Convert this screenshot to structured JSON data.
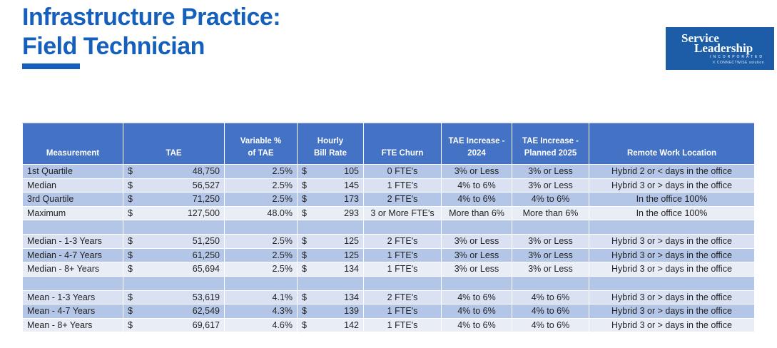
{
  "title": {
    "line1": "Infrastructure Practice:",
    "line2": "Field Technician"
  },
  "logo": {
    "line1": "Service",
    "line2": "Leadership",
    "line3": "INCORPORATED",
    "tagline": "CONNECTWISE solution"
  },
  "colors": {
    "title_blue": "#1560BD",
    "logo_blue": "#1D5CA6",
    "header_blue": "#4472C4",
    "row_dark": "#B4C6E7",
    "row_light": "#D9E1F2",
    "row_lighter": "#E9EDF6",
    "header_text": "#FFFFFF",
    "body_text": "#222222"
  },
  "table": {
    "currency_symbol": "$",
    "columns": [
      {
        "label": "Measurement"
      },
      {
        "label": "TAE"
      },
      {
        "label": "Variable %\nof TAE"
      },
      {
        "label": "Hourly\nBill Rate"
      },
      {
        "label": "FTE Churn"
      },
      {
        "label": "TAE Increase -\n2024"
      },
      {
        "label": "TAE Increase -\nPlanned 2025"
      },
      {
        "label": "Remote Work Location"
      }
    ],
    "rows": [
      {
        "band": "dark",
        "measurement": "1st Quartile",
        "tae": "48,750",
        "variable_pct": "2.5%",
        "bill_rate": "105",
        "fte_churn": "0 FTE's",
        "tae_increase_2024": "3% or Less",
        "tae_increase_2025": "3% or Less",
        "remote": "Hybrid 2 or < days in the office"
      },
      {
        "band": "light",
        "measurement": "Median",
        "tae": "56,527",
        "variable_pct": "2.5%",
        "bill_rate": "145",
        "fte_churn": "1 FTE's",
        "tae_increase_2024": "4% to 6%",
        "tae_increase_2025": "3% or Less",
        "remote": "Hybrid 3 or > days in the office"
      },
      {
        "band": "dark",
        "measurement": "3rd Quartile",
        "tae": "71,250",
        "variable_pct": "2.5%",
        "bill_rate": "173",
        "fte_churn": "2 FTE's",
        "tae_increase_2024": "4% to 6%",
        "tae_increase_2025": "4% to 6%",
        "remote": "In the office 100%"
      },
      {
        "band": "lighter",
        "measurement": "Maximum",
        "tae": "127,500",
        "variable_pct": "48.0%",
        "bill_rate": "293",
        "fte_churn": "3 or More FTE's",
        "tae_increase_2024": "More than 6%",
        "tae_increase_2025": "More than 6%",
        "remote": "In the office 100%"
      },
      {
        "spacer": true,
        "band": "dark"
      },
      {
        "band": "light",
        "measurement": "Median - 1-3 Years",
        "tae": "51,250",
        "variable_pct": "2.5%",
        "bill_rate": "125",
        "fte_churn": "2 FTE's",
        "tae_increase_2024": "3% or Less",
        "tae_increase_2025": "3% or Less",
        "remote": "Hybrid 3 or > days in the office"
      },
      {
        "band": "dark",
        "measurement": "Median - 4-7 Years",
        "tae": "61,250",
        "variable_pct": "2.5%",
        "bill_rate": "125",
        "fte_churn": "1 FTE's",
        "tae_increase_2024": "3% or Less",
        "tae_increase_2025": "3% or Less",
        "remote": "Hybrid 3 or > days in the office"
      },
      {
        "band": "lighter",
        "measurement": "Median - 8+ Years",
        "tae": "65,694",
        "variable_pct": "2.5%",
        "bill_rate": "134",
        "fte_churn": "1 FTE's",
        "tae_increase_2024": "3% or Less",
        "tae_increase_2025": "3% or Less",
        "remote": "Hybrid 3 or > days in the office"
      },
      {
        "spacer": true,
        "band": "dark"
      },
      {
        "band": "light",
        "measurement": "Mean - 1-3 Years",
        "tae": "53,619",
        "variable_pct": "4.1%",
        "bill_rate": "134",
        "fte_churn": "2 FTE's",
        "tae_increase_2024": "4% to 6%",
        "tae_increase_2025": "4% to 6%",
        "remote": "Hybrid 3 or > days in the office"
      },
      {
        "band": "dark",
        "measurement": "Mean - 4-7 Years",
        "tae": "62,549",
        "variable_pct": "4.3%",
        "bill_rate": "139",
        "fte_churn": "1 FTE's",
        "tae_increase_2024": "4% to 6%",
        "tae_increase_2025": "4% to 6%",
        "remote": "Hybrid 3 or > days in the office"
      },
      {
        "band": "lighter",
        "measurement": "Mean - 8+ Years",
        "tae": "69,617",
        "variable_pct": "4.6%",
        "bill_rate": "142",
        "fte_churn": "1 FTE's",
        "tae_increase_2024": "4% to 6%",
        "tae_increase_2025": "4% to 6%",
        "remote": "Hybrid 3 or > days in the office"
      }
    ]
  }
}
